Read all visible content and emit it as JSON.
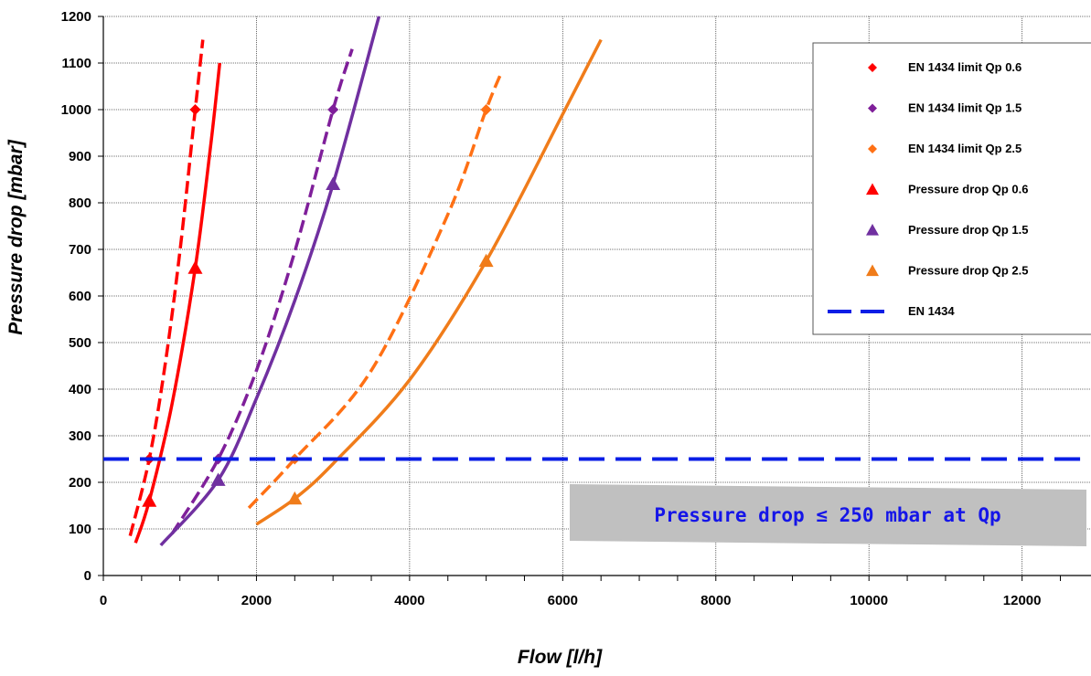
{
  "chart_data": {
    "type": "line",
    "xlabel": "Flow [l/h]",
    "ylabel": "Pressure drop [mbar]",
    "xlim": [
      0,
      12900
    ],
    "ylim": [
      0,
      1200
    ],
    "x_ticks": [
      0,
      2000,
      4000,
      6000,
      8000,
      10000,
      12000
    ],
    "y_ticks": [
      0,
      100,
      200,
      300,
      400,
      500,
      600,
      700,
      800,
      900,
      1000,
      1100,
      1200
    ],
    "grid": true,
    "legend_position": "top-right",
    "annotation": "Pressure drop ≤ 250 mbar at Qp",
    "series": [
      {
        "name": "EN 1434 limit Qp 0.6",
        "color": "#ff0000",
        "style": "dashed",
        "marker": "diamond",
        "x": [
          350,
          600,
          800,
          1000,
          1200,
          1300
        ],
        "y": [
          85,
          250,
          445,
          695,
          1000,
          1150
        ],
        "marker_points": [
          [
            600,
            250
          ],
          [
            1200,
            1000
          ]
        ]
      },
      {
        "name": "EN 1434 limit Qp 1.5",
        "color": "#7f1f9a",
        "style": "dashed",
        "marker": "diamond",
        "x": [
          900,
          1500,
          2000,
          2500,
          3000,
          3250
        ],
        "y": [
          90,
          250,
          440,
          695,
          1000,
          1130
        ],
        "marker_points": [
          [
            1500,
            250
          ],
          [
            3000,
            1000
          ]
        ]
      },
      {
        "name": "EN 1434 limit Qp 2.5",
        "color": "#ff7014",
        "style": "dashed",
        "marker": "diamond",
        "x": [
          1900,
          2500,
          3500,
          4500,
          5000,
          5200
        ],
        "y": [
          145,
          250,
          440,
          775,
          1000,
          1080
        ],
        "marker_points": [
          [
            2500,
            250
          ],
          [
            5000,
            1000
          ]
        ]
      },
      {
        "name": "Pressure drop Qp 0.6",
        "color": "#ff0000",
        "style": "solid",
        "marker": "triangle",
        "x": [
          420,
          600,
          900,
          1200,
          1400,
          1520
        ],
        "y": [
          70,
          160,
          370,
          660,
          920,
          1100
        ],
        "marker_points": [
          [
            600,
            160
          ],
          [
            1200,
            660
          ]
        ]
      },
      {
        "name": "Pressure drop Qp 1.5",
        "color": "#7030a0",
        "style": "solid",
        "marker": "triangle",
        "x": [
          750,
          1500,
          2000,
          2500,
          3000,
          3600
        ],
        "y": [
          65,
          205,
          380,
          590,
          840,
          1200
        ],
        "marker_points": [
          [
            1500,
            205
          ],
          [
            3000,
            840
          ]
        ]
      },
      {
        "name": "Pressure drop Qp 2.5",
        "color": "#f07c1a",
        "style": "solid",
        "marker": "triangle",
        "x": [
          2000,
          2500,
          3000,
          4000,
          5000,
          6000,
          6500
        ],
        "y": [
          110,
          165,
          240,
          420,
          675,
          990,
          1150
        ],
        "marker_points": [
          [
            2500,
            165
          ],
          [
            5000,
            675
          ]
        ]
      },
      {
        "name": "EN 1434",
        "color": "#0a1ee6",
        "style": "long-dash",
        "marker": "none",
        "x": [
          0,
          12900
        ],
        "y": [
          250,
          250
        ]
      }
    ]
  }
}
